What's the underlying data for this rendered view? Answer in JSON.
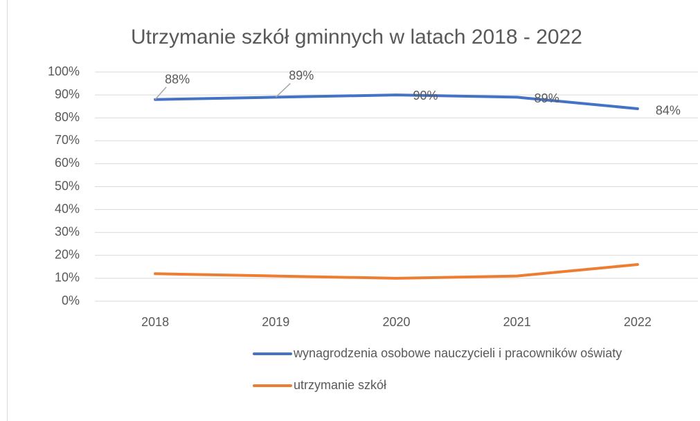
{
  "chart_data": {
    "type": "line",
    "title": "Utrzymanie szkół gminnych w latach 2018 - 2022",
    "categories": [
      "2018",
      "2019",
      "2020",
      "2021",
      "2022"
    ],
    "series": [
      {
        "name": "wynagrodzenia osobowe nauczycieli i pracowników oświaty",
        "color": "#4472c4",
        "values": [
          88,
          89,
          90,
          89,
          84
        ],
        "value_labels": [
          "88%",
          "89%",
          "90%",
          "89%",
          "84%"
        ]
      },
      {
        "name": "utrzymanie szkół",
        "color": "#ed7d31",
        "values": [
          12,
          11,
          10,
          11,
          16
        ]
      }
    ],
    "ylim": [
      0,
      100
    ],
    "yticks": [
      {
        "value": 0,
        "label": "0%"
      },
      {
        "value": 10,
        "label": "10%"
      },
      {
        "value": 20,
        "label": "20%"
      },
      {
        "value": 30,
        "label": "30%"
      },
      {
        "value": 40,
        "label": "40%"
      },
      {
        "value": 50,
        "label": "50%"
      },
      {
        "value": 60,
        "label": "60%"
      },
      {
        "value": 70,
        "label": "70%"
      },
      {
        "value": 80,
        "label": "80%"
      },
      {
        "value": 90,
        "label": "90%"
      },
      {
        "value": 100,
        "label": "100%"
      }
    ],
    "grid": true
  }
}
